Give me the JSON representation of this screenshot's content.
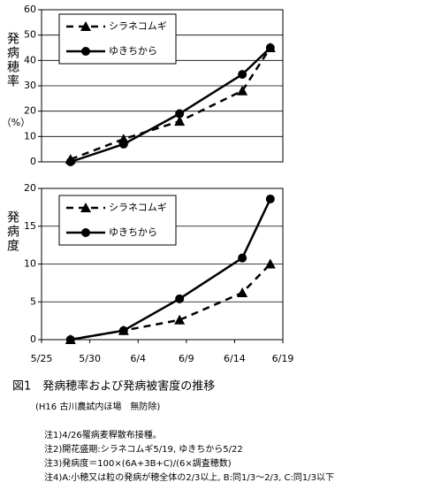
{
  "chart_data": [
    {
      "type": "line",
      "y_label": "発病穂率",
      "y_unit": "（%）",
      "x": [
        3,
        8.5,
        14.3,
        20.8,
        23.7
      ],
      "xlim": [
        0,
        25
      ],
      "ylim": [
        0,
        60
      ],
      "yticks": [
        0,
        10,
        20,
        30,
        40,
        50,
        60
      ],
      "grid": true,
      "legend": "upper left",
      "series": [
        {
          "name": "シラネコムギ",
          "color": "#000000",
          "line_style": "dashed",
          "marker": "triangle",
          "values": [
            1,
            9,
            16,
            28,
            45
          ]
        },
        {
          "name": "ゆきちから",
          "color": "#000000",
          "line_style": "solid",
          "marker": "circle",
          "values": [
            0,
            7,
            19,
            34.5,
            45
          ]
        }
      ]
    },
    {
      "type": "line",
      "y_label": "発病度",
      "x": [
        3,
        8.5,
        14.3,
        20.8,
        23.7
      ],
      "xlim": [
        0,
        25
      ],
      "xticks": [
        {
          "value": 0,
          "label": "5/25"
        },
        {
          "value": 5,
          "label": "5/30"
        },
        {
          "value": 10,
          "label": "6/4"
        },
        {
          "value": 15,
          "label": "6/9"
        },
        {
          "value": 20,
          "label": "6/14"
        },
        {
          "value": 25,
          "label": "6/19"
        }
      ],
      "ylim": [
        0,
        20
      ],
      "yticks": [
        0,
        5,
        10,
        15,
        20
      ],
      "grid": true,
      "legend": "upper left",
      "series": [
        {
          "name": "シラネコムギ",
          "color": "#000000",
          "line_style": "dashed",
          "marker": "triangle",
          "values": [
            0,
            1.2,
            2.6,
            6.2,
            10
          ]
        },
        {
          "name": "ゆきちから",
          "color": "#000000",
          "line_style": "solid",
          "marker": "circle",
          "values": [
            0,
            1.2,
            5.4,
            10.8,
            18.6
          ]
        }
      ]
    }
  ],
  "figure_caption": "図1　発病穂率および発病被害度の推移",
  "figure_subcaption": "(H16 古川農試内ほ場　無防除)",
  "notes": [
    "注1)4/26罹病麦稈散布接種。",
    "注2)開花盛期:シラネコムギ5/19, ゆきちから5/22",
    "注3)発病度＝100×(6A+3B+C)/(6×調査穂数)",
    "注4)A:小穂又は粒の発病が穂全体の2/3以上, B:同1/3～2/3, C:同1/3以下"
  ]
}
